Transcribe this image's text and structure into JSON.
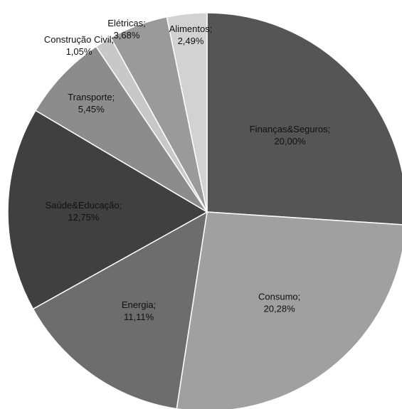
{
  "chart_data": {
    "type": "pie",
    "title": "",
    "slices": [
      {
        "category": "Finanças&Seguros",
        "value_label": "20,00%",
        "color": "#555555",
        "label_color": "#ffffff"
      },
      {
        "category": "Consumo",
        "value_label": "20,28%",
        "color": "#a0a0a0",
        "label_color": "#111111"
      },
      {
        "category": "Energia",
        "value_label": "11,11%",
        "color": "#6d6d6d",
        "label_color": "#111111"
      },
      {
        "category": "Saúde&Educação",
        "value_label": "12,75%",
        "color": "#404040",
        "label_color": "#ffffff"
      },
      {
        "category": "Transporte",
        "value_label": "5,45%",
        "color": "#8c8c8c",
        "label_color": "#111111"
      },
      {
        "category": "Construção Civil",
        "value_label": "1,05%",
        "color": "#c8c8c8",
        "label_color": "#111111"
      },
      {
        "category": "Elétricas",
        "value_label": "3,68%",
        "color": "#9a9a9a",
        "label_color": "#111111"
      },
      {
        "category": "Alimentos",
        "value_label": "2,49%",
        "color": "#d2d2d2",
        "label_color": "#111111"
      }
    ]
  }
}
